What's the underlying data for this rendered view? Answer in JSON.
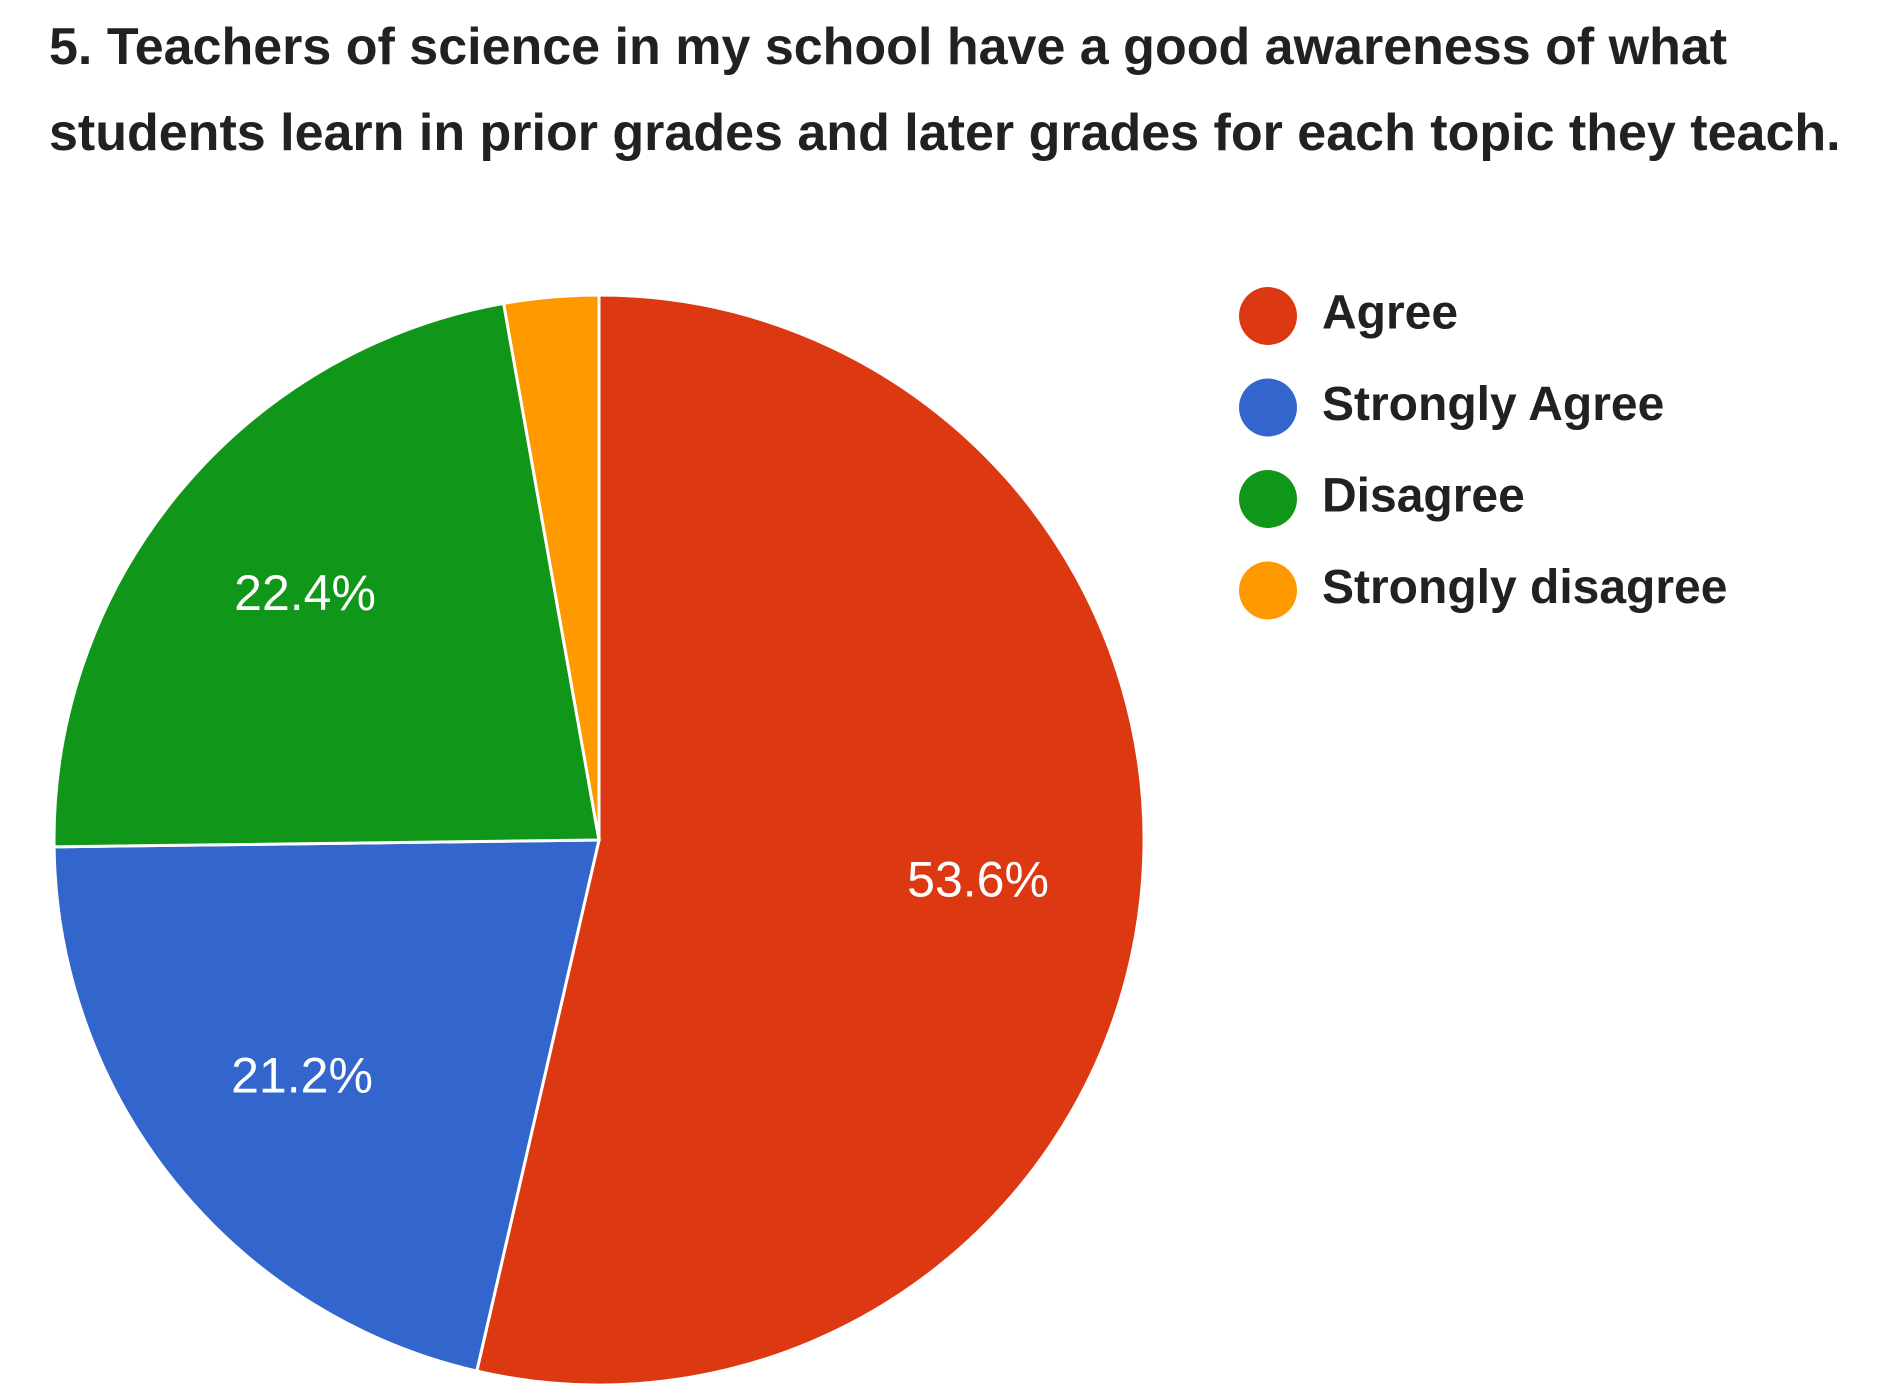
{
  "chart_data": {
    "type": "pie",
    "title": "5. Teachers of science in my school have a good awareness of what students learn in prior grades and later grades for each topic they teach.",
    "categories": [
      "Agree",
      "Strongly Agree",
      "Disagree",
      "Strongly disagree"
    ],
    "values": [
      53.6,
      21.2,
      22.4,
      2.8
    ],
    "value_labels": [
      "53.6%",
      "21.2%",
      "22.4%",
      null
    ],
    "colors": [
      "#dc3912",
      "#3366cc",
      "#109618",
      "#ff9900"
    ],
    "legend": "right"
  }
}
